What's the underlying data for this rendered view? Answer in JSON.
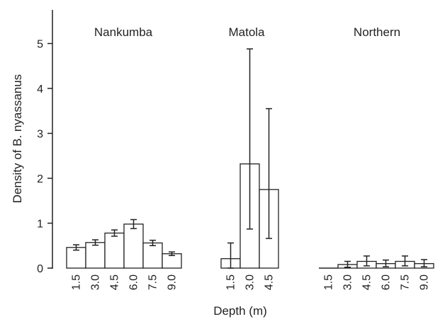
{
  "chart_data": {
    "type": "bar",
    "xlabel": "Depth (m)",
    "ylabel": "Density of B. nyassanus",
    "ylim": [
      0,
      5.5
    ],
    "yticks": [
      "0",
      "1",
      "2",
      "3",
      "4",
      "5"
    ],
    "grid": false,
    "groups": [
      {
        "name": "Nankumba",
        "categories": [
          "1.5",
          "3.0",
          "4.5",
          "6.0",
          "7.5",
          "9.0"
        ],
        "values": [
          0.46,
          0.57,
          0.78,
          0.98,
          0.56,
          0.32
        ],
        "err_low": [
          0.4,
          0.51,
          0.71,
          0.88,
          0.5,
          0.28
        ],
        "err_high": [
          0.52,
          0.63,
          0.85,
          1.08,
          0.62,
          0.36
        ]
      },
      {
        "name": "Matola",
        "categories": [
          "1.5",
          "3.0",
          "4.5"
        ],
        "values": [
          0.21,
          2.32,
          1.75
        ],
        "err_low": [
          0.0,
          0.87,
          0.66
        ],
        "err_high": [
          0.56,
          4.88,
          3.55
        ]
      },
      {
        "name": "Northern",
        "categories": [
          "1.5",
          "3.0",
          "4.5",
          "6.0",
          "7.5",
          "9.0"
        ],
        "values": [
          0.0,
          0.08,
          0.15,
          0.1,
          0.15,
          0.1
        ],
        "err_low": [
          0.0,
          0.02,
          0.05,
          0.03,
          0.05,
          0.03
        ],
        "err_high": [
          0.0,
          0.15,
          0.27,
          0.18,
          0.27,
          0.19
        ]
      }
    ]
  }
}
